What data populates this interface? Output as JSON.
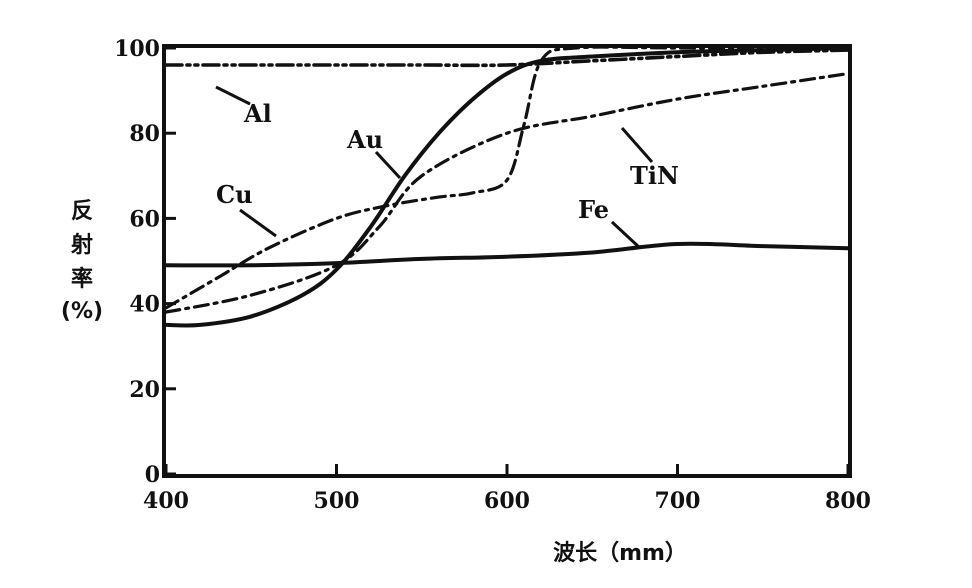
{
  "chart_data": {
    "type": "line",
    "xlabel": "波长（mm）",
    "ylabel_lines": [
      "反",
      "射",
      "率",
      "(%)"
    ],
    "xlim": [
      400,
      800
    ],
    "ylim": [
      0,
      100
    ],
    "x_ticks": [
      400,
      500,
      600,
      700,
      800
    ],
    "x_tick_labels": [
      "400",
      "500",
      "600",
      "700",
      "800"
    ],
    "y_ticks": [
      0,
      20,
      40,
      60,
      80,
      100
    ],
    "y_tick_labels": [
      "0",
      "20",
      "40",
      "60",
      "80",
      "100"
    ],
    "grid": false,
    "series": [
      {
        "name": "Al",
        "style": "dashdotdot",
        "x": [
          400,
          450,
          500,
          550,
          600,
          650,
          700,
          750,
          800
        ],
        "y": [
          96,
          96,
          96,
          96,
          96,
          97,
          98,
          99,
          99.5
        ]
      },
      {
        "name": "Au",
        "style": "solid",
        "x": [
          400,
          420,
          450,
          480,
          500,
          520,
          540,
          560,
          580,
          600,
          620,
          650,
          700,
          750,
          800
        ],
        "y": [
          35,
          35,
          37,
          42,
          48,
          58,
          70,
          80,
          88,
          94,
          97,
          98,
          99,
          99.5,
          100
        ]
      },
      {
        "name": "Cu",
        "style": "dashdot",
        "x": [
          400,
          430,
          460,
          500,
          530,
          560,
          580,
          600,
          610,
          620,
          640,
          700,
          800
        ],
        "y": [
          39,
          46,
          53,
          60,
          63,
          65,
          66,
          69,
          82,
          97,
          100,
          100,
          100
        ]
      },
      {
        "name": "TiN",
        "style": "dashdot",
        "x": [
          400,
          450,
          500,
          525,
          550,
          600,
          650,
          700,
          750,
          800
        ],
        "y": [
          38,
          42,
          49,
          58,
          70,
          80,
          84,
          88,
          91,
          94
        ]
      },
      {
        "name": "Fe",
        "style": "solid",
        "x": [
          400,
          450,
          500,
          550,
          600,
          650,
          700,
          750,
          800
        ],
        "y": [
          49,
          49,
          49.5,
          50.5,
          51,
          52,
          54,
          53.5,
          53
        ]
      }
    ]
  }
}
